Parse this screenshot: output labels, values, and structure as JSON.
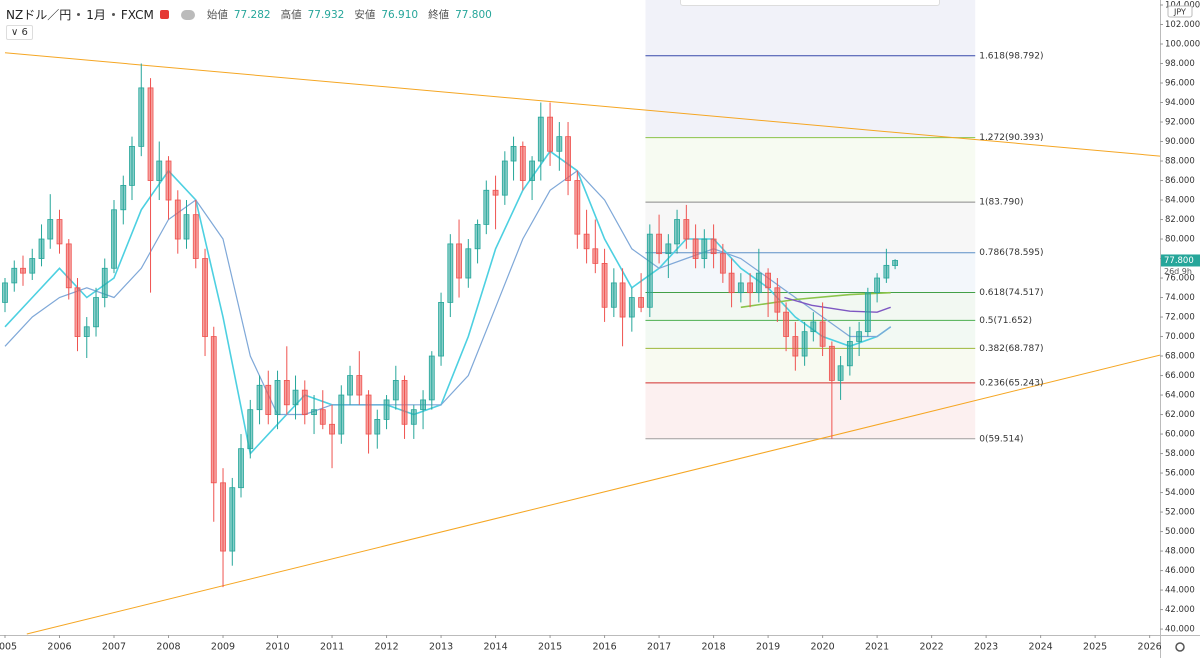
{
  "chart_data": {
    "type": "candlestick",
    "symbol": "NZドル／円",
    "interval": "1月",
    "source": "FXCM",
    "ohlc": [
      {
        "label": "始値",
        "value": "77.282"
      },
      {
        "label": "高値",
        "value": "77.932"
      },
      {
        "label": "安値",
        "value": "76.910"
      },
      {
        "label": "終値",
        "value": "77.800"
      }
    ],
    "indicator_count": 6,
    "currency": "JPY",
    "last_price": {
      "value": 77.8,
      "label": "77.800"
    },
    "countdown": "26d 9h",
    "xlim": [
      2005,
      2026.19
    ],
    "ylim": [
      39.7,
      104
    ],
    "xticks": [
      2005,
      2006,
      2007,
      2008,
      2009,
      2010,
      2011,
      2012,
      2013,
      2014,
      2015,
      2016,
      2017,
      2018,
      2019,
      2020,
      2021,
      2022,
      2023,
      2024,
      2025,
      2026
    ],
    "yticks": [
      {
        "value": 40,
        "label": "40.000"
      },
      {
        "value": 42,
        "label": "42.000"
      },
      {
        "value": 44,
        "label": "44.000"
      },
      {
        "value": 46,
        "label": "46.000"
      },
      {
        "value": 48,
        "label": "48.000"
      },
      {
        "value": 50,
        "label": "50.000"
      },
      {
        "value": 52,
        "label": "52.000"
      },
      {
        "value": 54,
        "label": "54.000"
      },
      {
        "value": 56,
        "label": "56.000"
      },
      {
        "value": 58,
        "label": "58.000"
      },
      {
        "value": 60,
        "label": "60.000"
      },
      {
        "value": 62,
        "label": "62.000"
      },
      {
        "value": 64,
        "label": "64.000"
      },
      {
        "value": 66,
        "label": "66.000"
      },
      {
        "value": 68,
        "label": "68.000"
      },
      {
        "value": 70,
        "label": "70.000"
      },
      {
        "value": 72,
        "label": "72.000"
      },
      {
        "value": 74,
        "label": "74.000"
      },
      {
        "value": 76,
        "label": "76.000"
      },
      {
        "value": 78,
        "label": "78.000"
      },
      {
        "value": 80,
        "label": "80.000"
      },
      {
        "value": 82,
        "label": "82.000"
      },
      {
        "value": 84,
        "label": "84.000"
      },
      {
        "value": 86,
        "label": "86.000"
      },
      {
        "value": 88,
        "label": "88.000"
      },
      {
        "value": 90,
        "label": "90.000"
      },
      {
        "value": 92,
        "label": "92.000"
      },
      {
        "value": 94,
        "label": "94.000"
      },
      {
        "value": 96,
        "label": "96.000"
      },
      {
        "value": 98,
        "label": "98.000"
      },
      {
        "value": 100,
        "label": "100.000"
      },
      {
        "value": 102,
        "label": "102.000"
      },
      {
        "value": 104,
        "label": "104.000"
      }
    ],
    "up_color": "#26a69a",
    "down_color": "#ef5350",
    "candles": [
      [
        2005.0,
        73.5,
        76.0,
        72.5,
        75.5
      ],
      [
        2005.17,
        75.5,
        77.8,
        74.6,
        77.0
      ],
      [
        2005.33,
        77.0,
        78.3,
        75.2,
        76.5
      ],
      [
        2005.5,
        76.5,
        79.0,
        75.8,
        78.0
      ],
      [
        2005.67,
        78.0,
        81.5,
        77.2,
        80.0
      ],
      [
        2005.83,
        80.0,
        84.6,
        79.0,
        82.0
      ],
      [
        2006.0,
        82.0,
        83.0,
        78.5,
        79.5
      ],
      [
        2006.17,
        79.5,
        80.0,
        73.8,
        75.0
      ],
      [
        2006.33,
        75.0,
        76.0,
        68.5,
        70.0
      ],
      [
        2006.5,
        70.0,
        72.0,
        67.8,
        71.0
      ],
      [
        2006.67,
        71.0,
        75.0,
        70.0,
        74.0
      ],
      [
        2006.83,
        74.0,
        78.0,
        73.0,
        77.0
      ],
      [
        2007.0,
        77.0,
        84.0,
        76.5,
        83.0
      ],
      [
        2007.17,
        83.0,
        86.5,
        81.5,
        85.5
      ],
      [
        2007.33,
        85.5,
        90.5,
        84.0,
        89.5
      ],
      [
        2007.5,
        89.5,
        98.0,
        88.5,
        95.5
      ],
      [
        2007.67,
        95.5,
        96.5,
        74.5,
        86.0
      ],
      [
        2007.83,
        86.0,
        90.0,
        84.0,
        88.0
      ],
      [
        2008.0,
        88.0,
        88.5,
        82.0,
        84.0
      ],
      [
        2008.17,
        84.0,
        85.0,
        78.5,
        80.0
      ],
      [
        2008.33,
        80.0,
        84.0,
        79.0,
        82.5
      ],
      [
        2008.5,
        82.5,
        84.0,
        77.0,
        78.0
      ],
      [
        2008.67,
        78.0,
        79.0,
        68.0,
        70.0
      ],
      [
        2008.83,
        70.0,
        71.0,
        51.0,
        55.0
      ],
      [
        2009.0,
        55.0,
        56.5,
        44.3,
        48.0
      ],
      [
        2009.17,
        48.0,
        55.5,
        46.5,
        54.5
      ],
      [
        2009.33,
        54.5,
        60.0,
        53.5,
        58.5
      ],
      [
        2009.5,
        58.5,
        63.5,
        57.5,
        62.5
      ],
      [
        2009.67,
        62.5,
        66.0,
        61.0,
        65.0
      ],
      [
        2009.83,
        65.0,
        66.5,
        61.0,
        62.0
      ],
      [
        2010.0,
        62.0,
        66.5,
        60.5,
        65.5
      ],
      [
        2010.17,
        65.5,
        69.0,
        62.0,
        63.0
      ],
      [
        2010.33,
        63.0,
        66.0,
        61.5,
        64.5
      ],
      [
        2010.5,
        64.5,
        65.5,
        61.0,
        62.0
      ],
      [
        2010.67,
        62.0,
        64.0,
        60.0,
        62.5
      ],
      [
        2010.83,
        62.5,
        64.5,
        60.5,
        61.0
      ],
      [
        2011.0,
        61.0,
        63.0,
        56.5,
        60.0
      ],
      [
        2011.17,
        60.0,
        65.0,
        59.0,
        64.0
      ],
      [
        2011.33,
        64.0,
        67.0,
        63.0,
        66.0
      ],
      [
        2011.5,
        66.0,
        68.5,
        63.0,
        64.0
      ],
      [
        2011.67,
        64.0,
        64.5,
        58.0,
        60.0
      ],
      [
        2011.83,
        60.0,
        62.5,
        58.5,
        61.5
      ],
      [
        2012.0,
        61.5,
        64.0,
        60.5,
        63.5
      ],
      [
        2012.17,
        63.5,
        67.0,
        62.5,
        65.5
      ],
      [
        2012.33,
        65.5,
        66.0,
        59.5,
        61.0
      ],
      [
        2012.5,
        61.0,
        63.0,
        59.5,
        62.5
      ],
      [
        2012.67,
        62.5,
        64.5,
        60.5,
        63.5
      ],
      [
        2012.83,
        63.5,
        68.5,
        62.5,
        68.0
      ],
      [
        2013.0,
        68.0,
        74.5,
        67.0,
        73.5
      ],
      [
        2013.17,
        73.5,
        80.5,
        72.0,
        79.5
      ],
      [
        2013.33,
        79.5,
        82.0,
        74.0,
        76.0
      ],
      [
        2013.5,
        76.0,
        80.0,
        75.0,
        79.0
      ],
      [
        2013.67,
        79.0,
        82.0,
        77.5,
        81.5
      ],
      [
        2013.83,
        81.5,
        86.0,
        80.5,
        85.0
      ],
      [
        2014.0,
        85.0,
        86.5,
        81.0,
        84.5
      ],
      [
        2014.17,
        84.5,
        89.0,
        83.5,
        88.0
      ],
      [
        2014.33,
        88.0,
        90.5,
        86.0,
        89.5
      ],
      [
        2014.5,
        89.5,
        90.0,
        85.0,
        86.0
      ],
      [
        2014.67,
        86.0,
        88.5,
        84.0,
        88.0
      ],
      [
        2014.83,
        88.0,
        94.0,
        86.0,
        92.5
      ],
      [
        2015.0,
        92.5,
        94.0,
        87.5,
        89.0
      ],
      [
        2015.17,
        89.0,
        92.0,
        87.0,
        90.5
      ],
      [
        2015.33,
        90.5,
        92.0,
        84.5,
        86.0
      ],
      [
        2015.5,
        86.0,
        87.0,
        79.0,
        80.5
      ],
      [
        2015.67,
        80.5,
        83.0,
        77.5,
        79.0
      ],
      [
        2015.83,
        79.0,
        82.0,
        76.5,
        77.5
      ],
      [
        2016.0,
        77.5,
        79.0,
        71.5,
        73.0
      ],
      [
        2016.17,
        73.0,
        77.0,
        72.0,
        75.5
      ],
      [
        2016.33,
        75.5,
        77.0,
        69.0,
        72.0
      ],
      [
        2016.5,
        72.0,
        75.0,
        70.5,
        74.0
      ],
      [
        2016.67,
        74.0,
        76.5,
        72.5,
        73.0
      ],
      [
        2016.83,
        73.0,
        81.5,
        72.0,
        80.5
      ],
      [
        2017.0,
        80.5,
        82.5,
        77.5,
        78.5
      ],
      [
        2017.17,
        78.5,
        80.5,
        76.0,
        79.5
      ],
      [
        2017.33,
        79.5,
        83.0,
        78.5,
        82.0
      ],
      [
        2017.5,
        82.0,
        83.5,
        79.0,
        80.0
      ],
      [
        2017.67,
        80.0,
        81.5,
        77.0,
        78.0
      ],
      [
        2017.83,
        78.0,
        81.0,
        77.0,
        80.0
      ],
      [
        2018.0,
        80.0,
        81.5,
        77.0,
        78.5
      ],
      [
        2018.17,
        78.5,
        79.5,
        75.5,
        76.5
      ],
      [
        2018.33,
        76.5,
        78.0,
        73.0,
        74.5
      ],
      [
        2018.5,
        74.5,
        76.5,
        73.5,
        75.5
      ],
      [
        2018.67,
        75.5,
        76.5,
        73.0,
        74.5
      ],
      [
        2018.83,
        74.5,
        79.0,
        73.5,
        76.5
      ],
      [
        2019.0,
        76.5,
        77.0,
        72.0,
        75.0
      ],
      [
        2019.17,
        75.0,
        76.0,
        71.5,
        72.5
      ],
      [
        2019.33,
        72.5,
        73.5,
        68.5,
        70.0
      ],
      [
        2019.5,
        70.0,
        71.5,
        66.5,
        68.0
      ],
      [
        2019.67,
        68.0,
        71.5,
        67.0,
        70.5
      ],
      [
        2019.83,
        70.5,
        72.5,
        69.5,
        71.5
      ],
      [
        2020.0,
        71.5,
        73.5,
        68.0,
        69.0
      ],
      [
        2020.17,
        69.0,
        69.5,
        59.5,
        65.5
      ],
      [
        2020.33,
        65.5,
        68.0,
        63.5,
        67.0
      ],
      [
        2020.5,
        67.0,
        71.0,
        66.0,
        69.5
      ],
      [
        2020.67,
        69.5,
        71.5,
        68.0,
        70.5
      ],
      [
        2020.83,
        70.5,
        75.0,
        70.0,
        74.5
      ],
      [
        2021.0,
        74.5,
        76.5,
        73.5,
        76.0
      ],
      [
        2021.17,
        76.0,
        79.0,
        75.5,
        77.3
      ],
      [
        2021.33,
        77.282,
        77.932,
        76.91,
        77.8
      ]
    ],
    "lines": [
      {
        "color": "#4dd0e1",
        "width": 1.6,
        "x": [
          2005,
          2005.5,
          2006,
          2006.5,
          2007,
          2007.5,
          2008,
          2008.5,
          2009,
          2009.5,
          2010,
          2010.5,
          2011,
          2011.5,
          2012,
          2012.5,
          2013,
          2013.5,
          2014,
          2014.5,
          2015,
          2015.5,
          2016,
          2016.5,
          2017,
          2017.5,
          2018,
          2018.5,
          2019,
          2019.5,
          2020,
          2020.5,
          2021,
          2021.25
        ],
        "values": [
          71,
          74,
          77,
          74,
          76,
          83,
          87,
          84,
          72,
          58,
          61,
          64,
          63,
          63,
          63,
          62,
          63,
          70,
          79,
          85,
          89,
          87,
          80,
          75,
          77,
          80,
          80,
          77,
          75,
          72,
          70,
          69,
          70,
          71
        ]
      },
      {
        "color": "#7fa8d8",
        "width": 1.2,
        "x": [
          2005,
          2005.5,
          2006,
          2006.5,
          2007,
          2007.5,
          2008,
          2008.5,
          2009,
          2009.5,
          2010,
          2010.5,
          2011,
          2011.5,
          2012,
          2012.5,
          2013,
          2013.5,
          2014,
          2014.5,
          2015,
          2015.5,
          2016,
          2016.5,
          2017,
          2017.5,
          2018,
          2018.5,
          2019,
          2019.5,
          2020,
          2020.5,
          2021,
          2021.25
        ],
        "values": [
          69,
          72,
          74,
          75,
          74,
          77,
          82,
          84,
          80,
          68,
          62,
          62,
          63,
          63,
          63,
          63,
          63,
          66,
          73,
          80,
          85,
          87,
          84,
          79,
          77,
          78,
          79,
          78,
          76,
          74,
          72,
          70,
          70,
          71
        ]
      },
      {
        "color": "#8bc34a",
        "width": 1.6,
        "x": [
          2018.5,
          2019.5,
          2020.5,
          2021.25
        ],
        "values": [
          73,
          73.8,
          74.3,
          74.5
        ]
      },
      {
        "color": "#7e57c2",
        "width": 1.4,
        "x": [
          2019.3,
          2019.8,
          2020.5,
          2021.0,
          2021.25
        ],
        "values": [
          74.0,
          73.2,
          72.6,
          72.5,
          73.0
        ]
      },
      {
        "color": "#f5a623",
        "width": 1,
        "x": [
          2005,
          2026.19
        ],
        "values": [
          99.1,
          88.5
        ]
      },
      {
        "color": "#f5a623",
        "width": 1,
        "x": [
          2005.4,
          2026.19
        ],
        "values": [
          39.5,
          68.1
        ]
      }
    ],
    "fib": {
      "x": [
        2016.75,
        2022.8
      ],
      "levels": [
        {
          "label": "1.618(98.792)",
          "value": 98.792,
          "color": "#3949ab"
        },
        {
          "label": "1.272(90.393)",
          "value": 90.393,
          "color": "#8bc34a"
        },
        {
          "label": "1(83.790)",
          "value": 83.79,
          "color": "#888888"
        },
        {
          "label": "0.786(78.595)",
          "value": 78.595,
          "color": "#5b8fc7"
        },
        {
          "label": "0.618(74.517)",
          "value": 74.517,
          "color": "#43a047"
        },
        {
          "label": "0.5(71.652)",
          "value": 71.652,
          "color": "#4caf50"
        },
        {
          "label": "0.382(68.787)",
          "value": 68.787,
          "color": "#9cb83a"
        },
        {
          "label": "0.236(65.243)",
          "value": 65.243,
          "color": "#d32f2f"
        },
        {
          "label": "0(59.514)",
          "value": 59.514,
          "color": "#9e9e9e"
        }
      ]
    }
  }
}
